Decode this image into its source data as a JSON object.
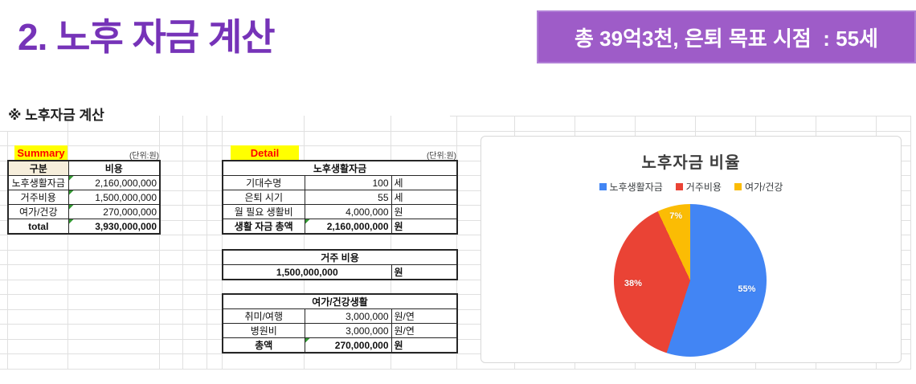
{
  "page": {
    "title": "2. 노후 자금 계산",
    "badge": "총 39억3천, 은퇴 목표 시점  : 55세",
    "section_title": "※ 노후자금 계산"
  },
  "summary": {
    "tag": "Summary",
    "unit_note": "(단위:원)",
    "headers": [
      "구분",
      "비용"
    ],
    "rows": [
      {
        "label": "노후생활자금",
        "value": "2,160,000,000"
      },
      {
        "label": "거주비용",
        "value": "1,500,000,000"
      },
      {
        "label": "여가/건강",
        "value": "270,000,000"
      },
      {
        "label": "total",
        "value": "3,930,000,000"
      }
    ]
  },
  "detail": {
    "tag": "Detail",
    "unit_note": "(단위:원)",
    "life_table": {
      "header": "노후생활자금",
      "rows": [
        {
          "label": "기대수명",
          "value": "100",
          "unit": "세"
        },
        {
          "label": "은퇴 시기",
          "value": "55",
          "unit": "세"
        },
        {
          "label": "월 필요 생활비",
          "value": "4,000,000",
          "unit": "원"
        },
        {
          "label": "생활 자금 총액",
          "value": "2,160,000,000",
          "unit": "원"
        }
      ]
    },
    "housing_table": {
      "header": "거주 비용",
      "value": "1,500,000,000",
      "unit": "원"
    },
    "leisure_table": {
      "header": "여가/건강생활",
      "rows": [
        {
          "label": "취미/여행",
          "value": "3,000,000",
          "unit": "원/연"
        },
        {
          "label": "병원비",
          "value": "3,000,000",
          "unit": "원/연"
        },
        {
          "label": "총액",
          "value": "270,000,000",
          "unit": "원"
        }
      ]
    }
  },
  "chart_data": {
    "type": "pie",
    "title": "노후자금 비율",
    "categories": [
      "노후생활자금",
      "거주비용",
      "여가/건강"
    ],
    "values": [
      55,
      38,
      7
    ],
    "value_labels": [
      "55%",
      "38%",
      "7%"
    ],
    "colors": [
      "#4285F4",
      "#EA4335",
      "#FBBC04"
    ],
    "legend_position": "top",
    "start_angle_deg": 0,
    "direction": "clockwise"
  },
  "theme": {
    "title_color": "#7633b8",
    "badge_bg": "#9e5cc8",
    "tag_bg": "#ffff00",
    "tag_text": "#ff0000",
    "flag_green": "#339933",
    "grid_color": "#e0e0e0"
  }
}
